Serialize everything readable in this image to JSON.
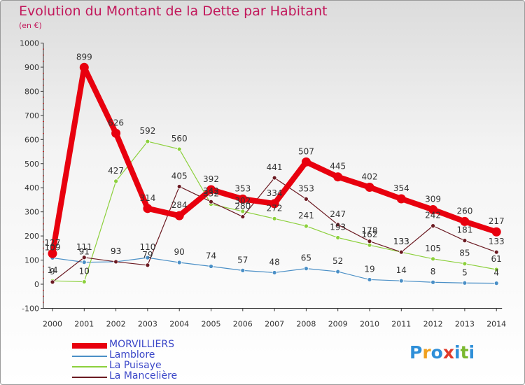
{
  "header": {
    "title": "Evolution du Montant de la Dette par Habitant",
    "unit": "(en €)"
  },
  "logo": {
    "text": "Proxiti",
    "colors": [
      "#2f8fd8",
      "#f0a020",
      "#2f8fd8",
      "#e03a2a",
      "#2f8fd8",
      "#7ab82e",
      "#2f8fd8"
    ]
  },
  "chart_data": {
    "type": "line",
    "title": "Evolution du Montant de la Dette par Habitant",
    "ylabel": "(en €)",
    "xlabel": "",
    "x": [
      "2000",
      "2001",
      "2002",
      "2003",
      "2004",
      "2005",
      "2006",
      "2007",
      "2008",
      "2009",
      "2010",
      "2011",
      "2012",
      "2013",
      "2014"
    ],
    "ylim": [
      -100,
      1000
    ],
    "yticks": [
      "-100",
      "0",
      "100",
      "200",
      "300",
      "400",
      "500",
      "600",
      "700",
      "800",
      "900",
      "1000"
    ],
    "grid": false,
    "legend_position": "bottom-left",
    "series": [
      {
        "name": "MORVILLIERS",
        "color": "#e8000e",
        "values": [
          127,
          899,
          626,
          314,
          284,
          392,
          353,
          334,
          507,
          445,
          402,
          354,
          309,
          260,
          217
        ],
        "labels": [
          "127",
          "899",
          "626",
          "314",
          "284",
          "392",
          "353",
          "334",
          "507",
          "445",
          "402",
          "354",
          "309",
          "260",
          "217"
        ]
      },
      {
        "name": "Lamblore",
        "color": "#4a8fc6",
        "values": [
          109,
          91,
          93,
          110,
          90,
          74,
          57,
          48,
          65,
          52,
          19,
          14,
          8,
          5,
          4
        ],
        "labels": [
          "109",
          "91",
          "93",
          "110",
          "90",
          "74",
          "57",
          "48",
          "65",
          "52",
          "19",
          "14",
          "8",
          "5",
          "4"
        ]
      },
      {
        "name": "La Puisaye",
        "color": "#8cd03c",
        "values": [
          14,
          10,
          427,
          592,
          560,
          332,
          302,
          272,
          241,
          193,
          162,
          133,
          105,
          85,
          61
        ],
        "labels": [
          "14",
          "10",
          "427",
          "592",
          "560",
          "332",
          "302",
          "272",
          "241",
          "193",
          "162",
          "133",
          "105",
          "85",
          "61"
        ]
      },
      {
        "name": "La Mancelière",
        "color": "#6b1a22",
        "values": [
          9,
          111,
          93,
          79,
          405,
          342,
          280,
          441,
          353,
          247,
          178,
          133,
          242,
          181,
          133
        ],
        "labels": [
          "9",
          "111",
          "93",
          "79",
          "405",
          "342",
          "280",
          "441",
          "353",
          "247",
          "178",
          "133",
          "242",
          "181",
          "133"
        ]
      }
    ]
  }
}
